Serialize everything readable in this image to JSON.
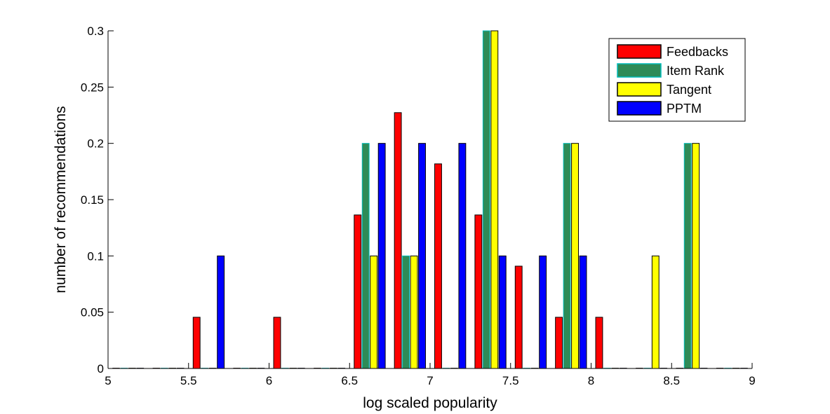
{
  "chart_data": {
    "type": "bar",
    "xlabel": "log scaled popularity",
    "ylabel": "number of recommendations",
    "xlim": [
      5,
      9
    ],
    "ylim": [
      0,
      0.3
    ],
    "xticks": [
      5,
      5.5,
      6,
      6.5,
      7,
      7.5,
      8,
      8.5,
      9
    ],
    "xtick_labels": [
      "5",
      "5.5",
      "6",
      "6.5",
      "7",
      "7.5",
      "8",
      "8.5",
      "9"
    ],
    "yticks": [
      0,
      0.05,
      0.1,
      0.15,
      0.2,
      0.25,
      0.3
    ],
    "ytick_labels": [
      "0",
      "0.05",
      "0.1",
      "0.15",
      "0.2",
      "0.25",
      "0.3"
    ],
    "bin_width": 0.25,
    "x": [
      5.125,
      5.375,
      5.625,
      5.875,
      6.125,
      6.375,
      6.625,
      6.875,
      7.125,
      7.375,
      7.625,
      7.875,
      8.125,
      8.375,
      8.625,
      8.875
    ],
    "series": [
      {
        "name": "Feedbacks",
        "color": "#ff0000",
        "values": [
          0,
          0,
          0.0455,
          0,
          0.0455,
          0,
          0.1364,
          0.2273,
          0.1818,
          0.1364,
          0.0909,
          0.0455,
          0.0455,
          0,
          0,
          0
        ]
      },
      {
        "name": "Item Rank",
        "color": "#2e8b57",
        "edge": "#00bcbc",
        "values": [
          0,
          0,
          0,
          0,
          0,
          0,
          0.2,
          0.1,
          0,
          0.3,
          0,
          0.2,
          0,
          0,
          0.2,
          0
        ]
      },
      {
        "name": "Tangent",
        "color": "#ffff00",
        "values": [
          0,
          0,
          0,
          0,
          0,
          0,
          0.1,
          0.1,
          0,
          0.3,
          0,
          0.2,
          0,
          0.1,
          0.2,
          0
        ]
      },
      {
        "name": "PPTM",
        "color": "#0000ff",
        "values": [
          0,
          0,
          0.1,
          0,
          0,
          0,
          0.2,
          0.2,
          0.2,
          0.1,
          0.1,
          0.1,
          0,
          0,
          0,
          0
        ]
      }
    ],
    "legend_position": "top-right",
    "grid": false
  }
}
